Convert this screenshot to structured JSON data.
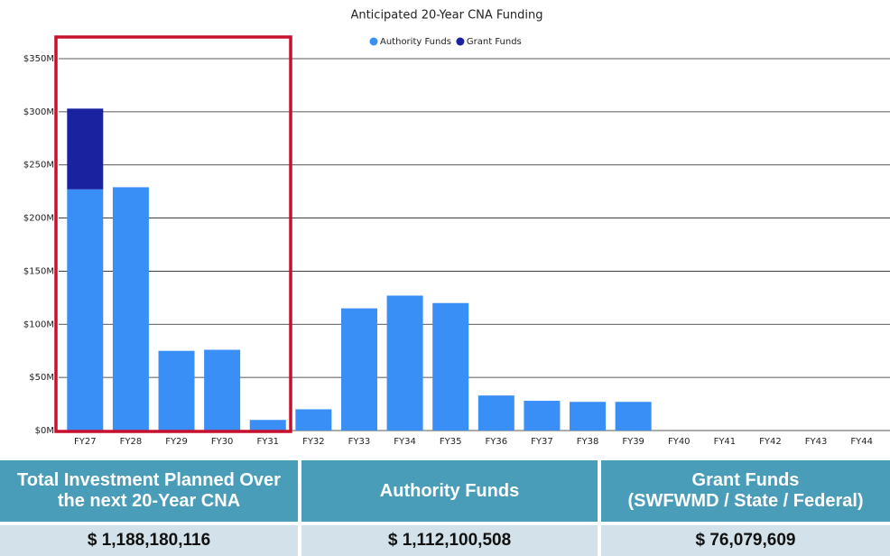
{
  "chart_data": {
    "type": "bar",
    "stacked": true,
    "title": "Anticipated 20-Year CNA Funding",
    "categories": [
      "FY27",
      "FY28",
      "FY29",
      "FY30",
      "FY31",
      "FY32",
      "FY33",
      "FY34",
      "FY35",
      "FY36",
      "FY37",
      "FY38",
      "FY39",
      "FY40",
      "FY41",
      "FY42",
      "FY43",
      "FY44"
    ],
    "series": [
      {
        "name": "Authority Funds",
        "color": "#3a8ff7",
        "values": [
          227,
          229,
          75,
          76,
          10,
          20,
          115,
          127,
          120,
          33,
          28,
          27,
          27,
          0,
          0,
          0,
          0,
          0
        ]
      },
      {
        "name": "Grant Funds",
        "color": "#1a22a0",
        "values": [
          76,
          0,
          0,
          0,
          0,
          0,
          0,
          0,
          0,
          0,
          0,
          0,
          0,
          0,
          0,
          0,
          0,
          0
        ]
      }
    ],
    "ylim": [
      0,
      350
    ],
    "yticks": [
      {
        "value": 0,
        "label": "$0M"
      },
      {
        "value": 50,
        "label": "$50M"
      },
      {
        "value": 100,
        "label": "$100M"
      },
      {
        "value": 150,
        "label": "$150M"
      },
      {
        "value": 200,
        "label": "$200M"
      },
      {
        "value": 250,
        "label": "$250M"
      },
      {
        "value": 300,
        "label": "$300M"
      },
      {
        "value": 350,
        "label": "$350M"
      }
    ],
    "grid": true,
    "legend": "top"
  },
  "table": {
    "headers": [
      [
        "Total Investment Planned Over",
        "the next 20-Year CNA"
      ],
      [
        "Authority Funds"
      ],
      [
        "Grant Funds",
        "(SWFWMD / State / Federal)"
      ]
    ],
    "values": [
      "$ 1,188,180,116",
      "$ 1,112,100,508",
      "$ 76,079,609"
    ]
  }
}
